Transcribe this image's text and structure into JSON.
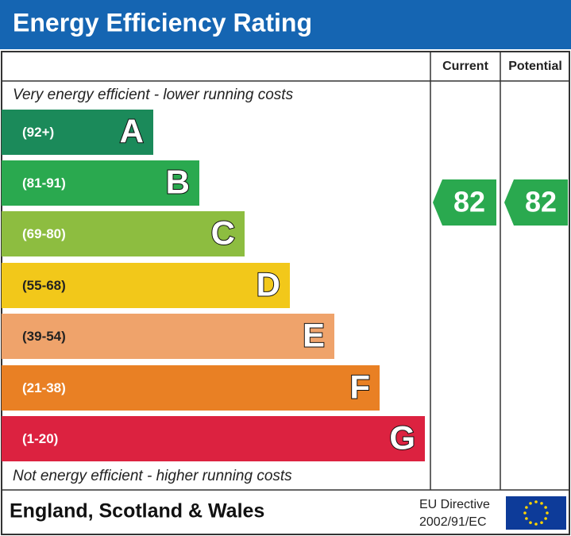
{
  "header": {
    "title": "Energy Efficiency Rating"
  },
  "columns": [
    "Current",
    "Potential"
  ],
  "top_note": "Very energy efficient - lower running costs",
  "bottom_note": "Not energy efficient - higher running costs",
  "bands": [
    {
      "range": "(92+)",
      "letter": "A",
      "color": "#1b8a5a"
    },
    {
      "range": "(81-91)",
      "letter": "B",
      "color": "#2aa94f"
    },
    {
      "range": "(69-80)",
      "letter": "C",
      "color": "#8dbd40"
    },
    {
      "range": "(55-68)",
      "letter": "D",
      "color": "#f2c81a"
    },
    {
      "range": "(39-54)",
      "letter": "E",
      "color": "#efa36b"
    },
    {
      "range": "(21-38)",
      "letter": "F",
      "color": "#e98024"
    },
    {
      "range": "(1-20)",
      "letter": "G",
      "color": "#dc2240"
    }
  ],
  "ratings": {
    "current": 82,
    "potential": 82,
    "color": "#2aa94f"
  },
  "footer": {
    "region": "England, Scotland & Wales",
    "directive_line1": "EU Directive",
    "directive_line2": "2002/91/EC"
  }
}
